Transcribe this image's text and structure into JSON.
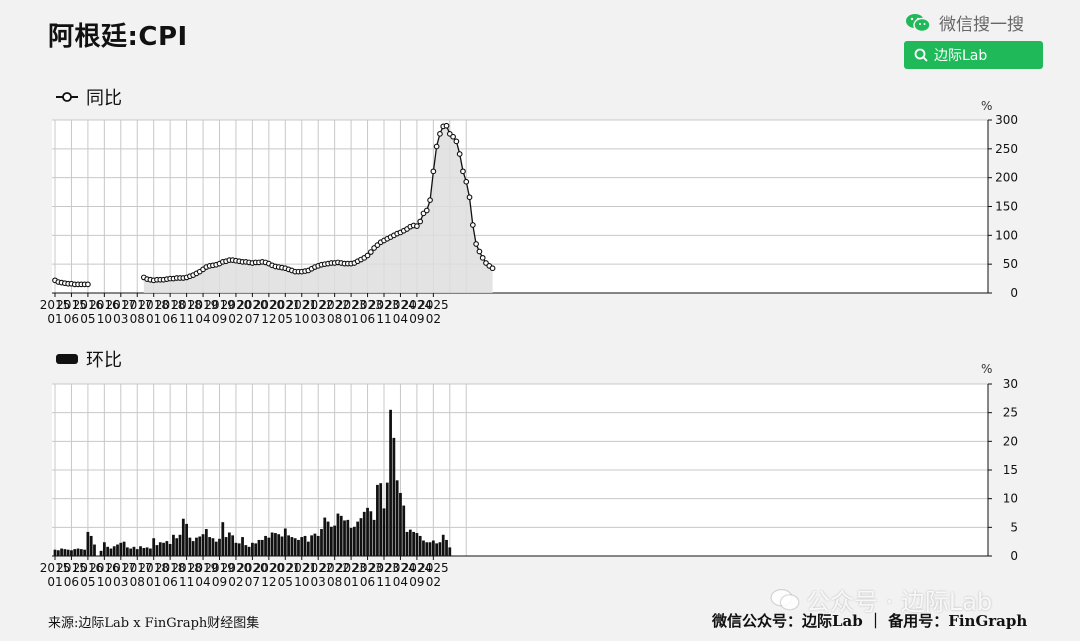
{
  "header": {
    "title": "阿根廷:CPI",
    "wechat_label": "微信搜一搜",
    "search_text": "边际Lab"
  },
  "legend": {
    "yoy": "同比",
    "mom": "环比"
  },
  "units": {
    "top": "%",
    "bottom": "%"
  },
  "footer": {
    "source": "来源:边际Lab x FinGraph财经图集",
    "right": "微信公众号：边际Lab ｜ 备用号：FinGraph",
    "watermark": "公众号 · 边际Lab"
  },
  "colors": {
    "brand": "#1fb959",
    "area": "#dedede",
    "bar": "#111111",
    "grid": "#c8c8c8"
  },
  "chart_data": [
    {
      "type": "area",
      "title": "同比",
      "ylabel": "%",
      "ylim": [
        0,
        300
      ],
      "yticks": [
        0,
        50,
        100,
        150,
        200,
        250,
        300
      ],
      "grid": true,
      "axis_position": "right",
      "start": "2015-01",
      "x_tick_labels": [
        [
          "2015",
          "01"
        ],
        [
          "2015",
          "06"
        ],
        [
          "2016",
          "05"
        ],
        [
          "2016",
          "10"
        ],
        [
          "2017",
          "03"
        ],
        [
          "2017",
          "08"
        ],
        [
          "2018",
          "01"
        ],
        [
          "2018",
          "06"
        ],
        [
          "2018",
          "11"
        ],
        [
          "2019",
          "04"
        ],
        [
          "2019",
          "09"
        ],
        [
          "2020",
          "02"
        ],
        [
          "2020",
          "07"
        ],
        [
          "2020",
          "12"
        ],
        [
          "2021",
          "05"
        ],
        [
          "2021",
          "10"
        ],
        [
          "2022",
          "03"
        ],
        [
          "2022",
          "08"
        ],
        [
          "2023",
          "01"
        ],
        [
          "2023",
          "06"
        ],
        [
          "2023",
          "11"
        ],
        [
          "2024",
          "04"
        ],
        [
          "2024",
          "09"
        ],
        [
          "2025",
          "02"
        ]
      ],
      "segments": [
        {
          "start": "2015-01",
          "values": [
            22,
            19,
            18,
            17,
            16,
            16,
            15,
            15,
            15,
            15,
            15
          ]
        },
        {
          "start": "2017-04",
          "values": [
            27,
            24,
            23,
            22,
            23,
            23,
            23,
            24,
            25,
            25,
            26,
            26,
            26,
            27,
            29,
            31,
            34,
            37,
            41,
            45,
            47,
            48,
            49,
            51,
            54,
            55,
            57,
            57,
            56,
            55,
            54,
            54,
            53,
            52,
            53,
            53,
            54,
            53,
            51,
            48,
            46,
            45,
            44,
            43,
            41,
            39,
            37,
            37,
            37,
            38,
            39,
            42,
            45,
            47,
            49,
            50,
            51,
            52,
            52,
            53,
            52,
            51,
            51,
            51,
            52,
            55,
            58,
            61,
            65,
            71,
            78,
            83,
            88,
            91,
            94,
            97,
            100,
            103,
            105,
            108,
            111,
            115,
            117,
            116,
            124,
            138,
            143,
            161,
            211,
            254,
            276,
            289,
            290,
            276,
            271,
            263,
            241,
            211,
            193,
            166,
            118,
            85,
            72,
            61,
            52,
            47,
            43
          ]
        }
      ]
    },
    {
      "type": "bar",
      "title": "环比",
      "ylabel": "%",
      "ylim": [
        0,
        30
      ],
      "yticks": [
        0,
        5,
        10,
        15,
        20,
        25,
        30
      ],
      "grid": true,
      "axis_position": "right",
      "start": "2015-01",
      "x_tick_labels": [
        [
          "2015",
          "01"
        ],
        [
          "2015",
          "06"
        ],
        [
          "2016",
          "05"
        ],
        [
          "2016",
          "10"
        ],
        [
          "2017",
          "03"
        ],
        [
          "2017",
          "08"
        ],
        [
          "2018",
          "01"
        ],
        [
          "2018",
          "06"
        ],
        [
          "2018",
          "11"
        ],
        [
          "2019",
          "04"
        ],
        [
          "2019",
          "09"
        ],
        [
          "2020",
          "02"
        ],
        [
          "2020",
          "07"
        ],
        [
          "2020",
          "12"
        ],
        [
          "2021",
          "05"
        ],
        [
          "2021",
          "10"
        ],
        [
          "2022",
          "03"
        ],
        [
          "2022",
          "08"
        ],
        [
          "2023",
          "01"
        ],
        [
          "2023",
          "06"
        ],
        [
          "2023",
          "11"
        ],
        [
          "2024",
          "04"
        ],
        [
          "2024",
          "09"
        ],
        [
          "2025",
          "02"
        ]
      ],
      "values": [
        1.1,
        1.0,
        1.3,
        1.2,
        1.1,
        1.0,
        1.2,
        1.3,
        1.2,
        1.1,
        4.2,
        3.5,
        2.0,
        null,
        0.9,
        2.4,
        1.6,
        1.3,
        1.7,
        2.0,
        2.3,
        2.5,
        1.5,
        1.3,
        1.6,
        1.2,
        1.7,
        1.4,
        1.5,
        1.3,
        3.1,
        1.9,
        2.4,
        2.3,
        2.6,
        2.1,
        3.7,
        3.1,
        3.7,
        6.5,
        5.6,
        3.2,
        2.6,
        3.2,
        3.4,
        3.8,
        4.7,
        3.3,
        3.1,
        2.5,
        3.0,
        5.9,
        3.3,
        4.1,
        3.6,
        2.3,
        2.2,
        3.3,
        1.9,
        1.6,
        2.3,
        2.2,
        2.8,
        2.8,
        3.5,
        3.2,
        4.1,
        4.0,
        3.8,
        3.4,
        4.8,
        3.6,
        3.3,
        3.1,
        2.8,
        3.3,
        3.5,
        2.5,
        3.6,
        3.9,
        3.5,
        4.7,
        6.7,
        6.0,
        5.1,
        5.3,
        7.4,
        7.0,
        6.2,
        6.3,
        4.9,
        5.1,
        6.0,
        6.6,
        7.7,
        8.4,
        7.8,
        6.3,
        12.4,
        12.7,
        8.3,
        12.8,
        25.5,
        20.6,
        13.2,
        11.0,
        8.8,
        4.2,
        4.6,
        4.2,
        4.0,
        3.5,
        2.7,
        2.4,
        2.4,
        2.7,
        2.2,
        2.4,
        3.7,
        2.8,
        1.5
      ]
    }
  ]
}
